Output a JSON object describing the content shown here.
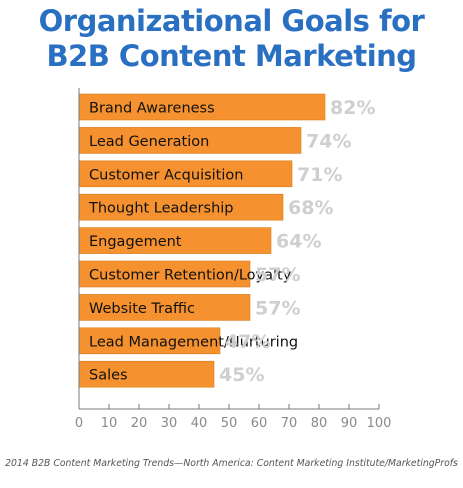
{
  "colors": {
    "title": "#2a70c2",
    "bar": "#f5922f",
    "bar_edge": "#d97c1c",
    "value_label": "#cfcfcf",
    "category_label": "#111111",
    "axis": "#7a7a7a",
    "tick_label": "#8a8a8a",
    "source": "#555555"
  },
  "chart_data": {
    "type": "bar",
    "orientation": "horizontal",
    "title_lines": [
      "Organizational Goals for",
      "B2B Content Marketing"
    ],
    "categories": [
      "Brand Awareness",
      "Lead Generation",
      "Customer Acquisition",
      "Thought Leadership",
      "Engagement",
      "Customer Retention/Loyalty",
      "Website Traffic",
      "Lead Management/Nurturing",
      "Sales"
    ],
    "values": [
      82,
      74,
      71,
      68,
      64,
      57,
      57,
      47,
      45
    ],
    "value_labels": [
      "82%",
      "74%",
      "71%",
      "68%",
      "64%",
      "57%",
      "57%",
      "47%",
      "45%"
    ],
    "xlim": [
      0,
      100
    ],
    "x_ticks": [
      0,
      10,
      20,
      30,
      40,
      50,
      60,
      70,
      80,
      90,
      100
    ],
    "x_tick_labels": [
      "0",
      "10",
      "20",
      "30",
      "40",
      "50",
      "60",
      "70",
      "80",
      "90",
      "100"
    ],
    "xlabel": "",
    "ylabel": "",
    "grid": false,
    "legend": "none"
  },
  "source": "2014 B2B Content Marketing Trends—North America: Content Marketing Institute/MarketingProfs"
}
